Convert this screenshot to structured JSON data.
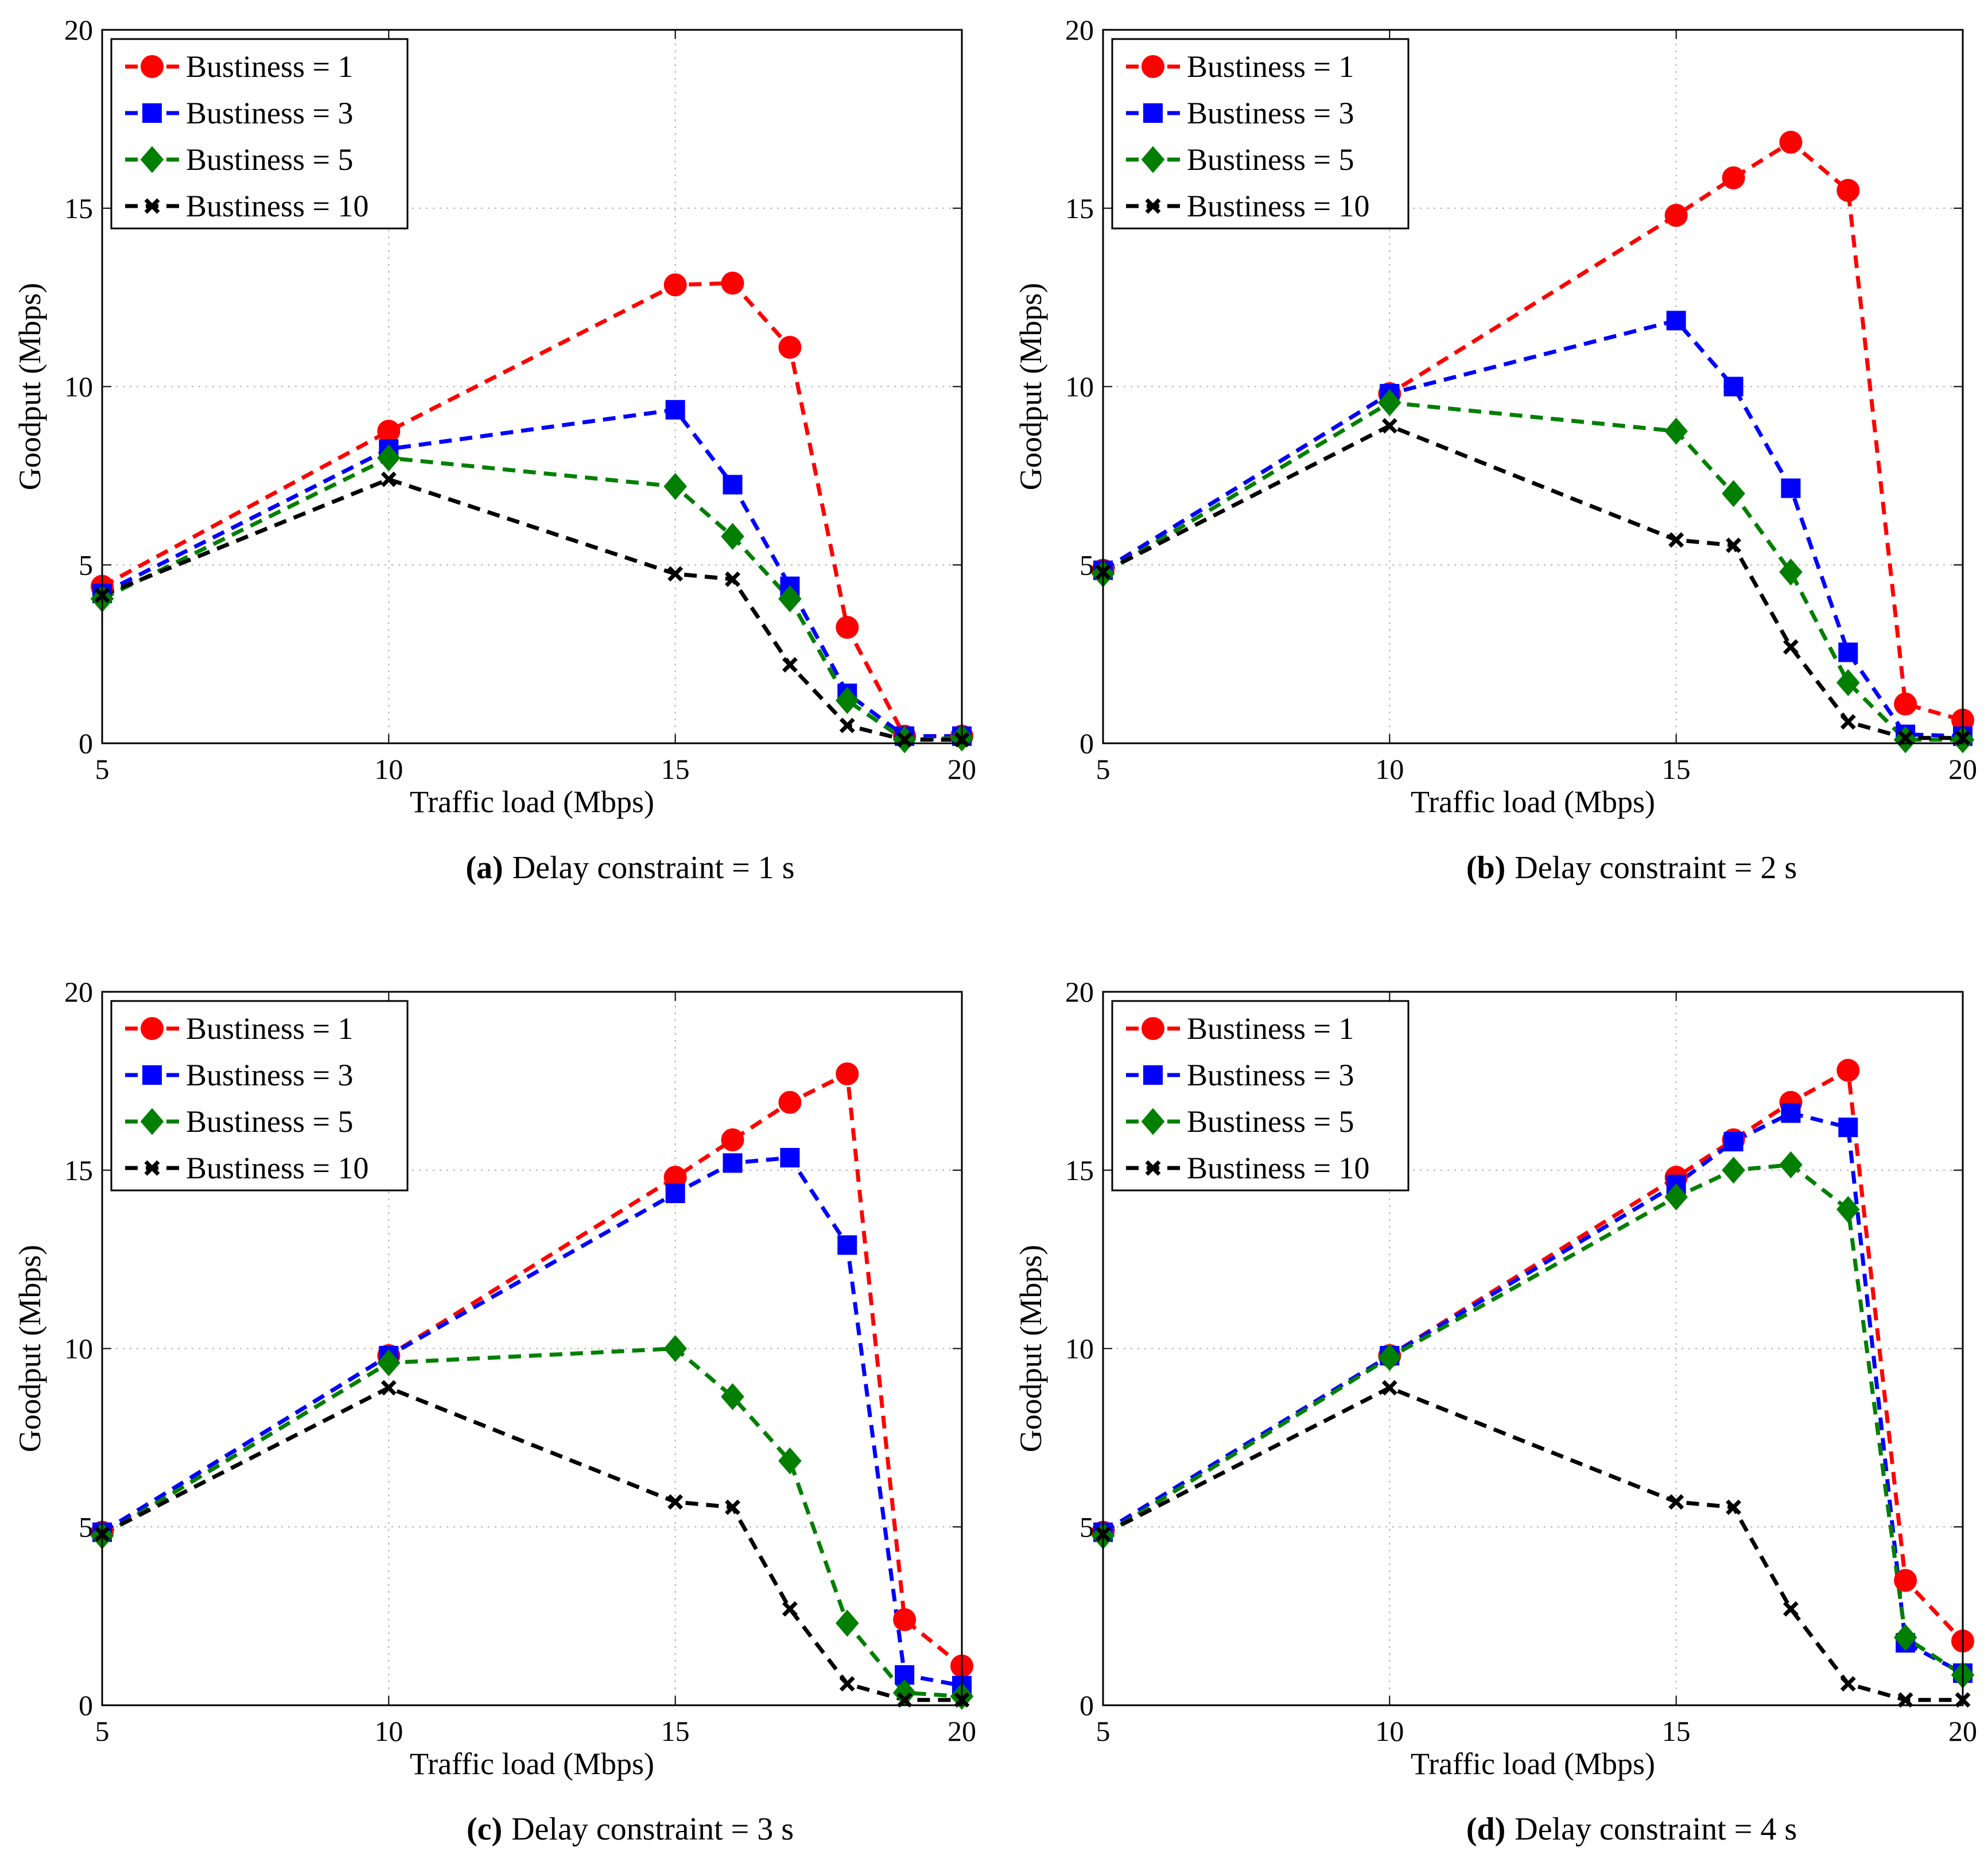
{
  "chart_data": [
    {
      "type": "line",
      "panel_label": "(a)",
      "caption": "Delay constraint = 1 s",
      "xlabel": "Traffic load (Mbps)",
      "ylabel": "Goodput (Mbps)",
      "xlim": [
        5,
        20
      ],
      "ylim": [
        0,
        20
      ],
      "xticks": [
        "5",
        "10",
        "15",
        "20"
      ],
      "yticks": [
        "0",
        "5",
        "10",
        "15",
        "20"
      ],
      "grid": true,
      "legend_position": "top-left",
      "x": [
        5,
        10,
        15,
        16,
        17,
        18,
        19,
        20
      ],
      "series": [
        {
          "name": "Bustiness = 1",
          "color": "#ff0000",
          "marker": "circle",
          "values": [
            4.4,
            8.75,
            12.85,
            12.9,
            11.1,
            3.25,
            0.2,
            0.2
          ]
        },
        {
          "name": "Bustiness = 3",
          "color": "#0000ff",
          "marker": "square",
          "values": [
            4.2,
            8.25,
            9.35,
            7.25,
            4.4,
            1.4,
            0.2,
            0.2
          ]
        },
        {
          "name": "Bustiness = 5",
          "color": "#007f00",
          "marker": "diamond",
          "values": [
            4.05,
            8.0,
            7.2,
            5.8,
            4.05,
            1.2,
            0.1,
            0.15
          ]
        },
        {
          "name": "Bustiness = 10",
          "color": "#000000",
          "marker": "x",
          "values": [
            4.15,
            7.4,
            4.75,
            4.6,
            2.2,
            0.5,
            0.1,
            0.1
          ]
        }
      ]
    },
    {
      "type": "line",
      "panel_label": "(b)",
      "caption": "Delay constraint = 2 s",
      "xlabel": "Traffic load (Mbps)",
      "ylabel": "Goodput (Mbps)",
      "xlim": [
        5,
        20
      ],
      "ylim": [
        0,
        20
      ],
      "xticks": [
        "5",
        "10",
        "15",
        "20"
      ],
      "yticks": [
        "0",
        "5",
        "10",
        "15",
        "20"
      ],
      "grid": true,
      "legend_position": "top-left",
      "x": [
        5,
        10,
        15,
        16,
        17,
        18,
        19,
        20
      ],
      "series": [
        {
          "name": "Bustiness = 1",
          "color": "#ff0000",
          "marker": "circle",
          "values": [
            4.85,
            9.8,
            14.8,
            15.85,
            16.85,
            15.5,
            1.1,
            0.65
          ]
        },
        {
          "name": "Bustiness = 3",
          "color": "#0000ff",
          "marker": "square",
          "values": [
            4.85,
            9.8,
            11.85,
            10.0,
            7.15,
            2.55,
            0.25,
            0.2
          ]
        },
        {
          "name": "Bustiness = 5",
          "color": "#007f00",
          "marker": "diamond",
          "values": [
            4.75,
            9.55,
            8.75,
            7.0,
            4.8,
            1.7,
            0.1,
            0.1
          ]
        },
        {
          "name": "Bustiness = 10",
          "color": "#000000",
          "marker": "x",
          "values": [
            4.8,
            8.9,
            5.7,
            5.55,
            2.7,
            0.6,
            0.15,
            0.15
          ]
        }
      ]
    },
    {
      "type": "line",
      "panel_label": "(c)",
      "caption": "Delay constraint = 3 s",
      "xlabel": "Traffic load (Mbps)",
      "ylabel": "Goodput (Mbps)",
      "xlim": [
        5,
        20
      ],
      "ylim": [
        0,
        20
      ],
      "xticks": [
        "5",
        "10",
        "15",
        "20"
      ],
      "yticks": [
        "0",
        "5",
        "10",
        "15",
        "20"
      ],
      "grid": true,
      "legend_position": "top-left",
      "x": [
        5,
        10,
        15,
        16,
        17,
        18,
        19,
        20
      ],
      "series": [
        {
          "name": "Bustiness = 1",
          "color": "#ff0000",
          "marker": "circle",
          "values": [
            4.85,
            9.8,
            14.8,
            15.85,
            16.9,
            17.7,
            2.4,
            1.1
          ]
        },
        {
          "name": "Bustiness = 3",
          "color": "#0000ff",
          "marker": "square",
          "values": [
            4.85,
            9.8,
            14.35,
            15.2,
            15.35,
            12.9,
            0.85,
            0.55
          ]
        },
        {
          "name": "Bustiness = 5",
          "color": "#007f00",
          "marker": "diamond",
          "values": [
            4.75,
            9.6,
            10.0,
            8.65,
            6.85,
            2.3,
            0.35,
            0.25
          ]
        },
        {
          "name": "Bustiness = 10",
          "color": "#000000",
          "marker": "x",
          "values": [
            4.8,
            8.9,
            5.7,
            5.55,
            2.7,
            0.6,
            0.15,
            0.15
          ]
        }
      ]
    },
    {
      "type": "line",
      "panel_label": "(d)",
      "caption": "Delay constraint = 4 s",
      "xlabel": "Traffic load (Mbps)",
      "ylabel": "Goodput (Mbps)",
      "xlim": [
        5,
        20
      ],
      "ylim": [
        0,
        20
      ],
      "xticks": [
        "5",
        "10",
        "15",
        "20"
      ],
      "yticks": [
        "0",
        "5",
        "10",
        "15",
        "20"
      ],
      "grid": true,
      "legend_position": "top-left",
      "x": [
        5,
        10,
        15,
        16,
        17,
        18,
        19,
        20
      ],
      "series": [
        {
          "name": "Bustiness = 1",
          "color": "#ff0000",
          "marker": "circle",
          "values": [
            4.85,
            9.8,
            14.8,
            15.85,
            16.9,
            17.8,
            3.5,
            1.8
          ]
        },
        {
          "name": "Bustiness = 3",
          "color": "#0000ff",
          "marker": "square",
          "values": [
            4.85,
            9.8,
            14.6,
            15.8,
            16.6,
            16.2,
            1.75,
            0.9
          ]
        },
        {
          "name": "Bustiness = 5",
          "color": "#007f00",
          "marker": "diamond",
          "values": [
            4.75,
            9.75,
            14.25,
            15.0,
            15.15,
            13.9,
            1.9,
            0.85
          ]
        },
        {
          "name": "Bustiness = 10",
          "color": "#000000",
          "marker": "x",
          "values": [
            4.8,
            8.9,
            5.7,
            5.55,
            2.7,
            0.6,
            0.15,
            0.15
          ]
        }
      ]
    }
  ]
}
